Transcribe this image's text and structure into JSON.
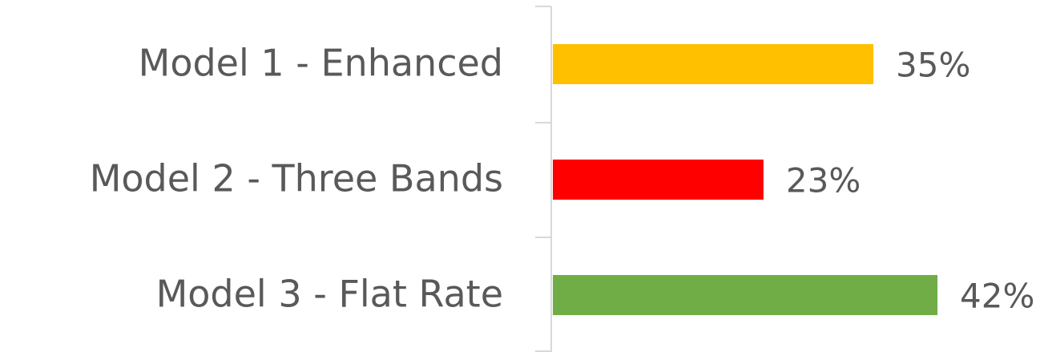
{
  "chart_data": {
    "type": "bar",
    "orientation": "horizontal",
    "categories": [
      "Model 1 - Enhanced",
      "Model 2 - Three Bands",
      "Model 3 - Flat Rate"
    ],
    "values": [
      35,
      23,
      42
    ],
    "value_labels": [
      "35%",
      "23%",
      "42%"
    ],
    "colors": [
      "#ffc000",
      "#ff0000",
      "#70ad47"
    ]
  }
}
